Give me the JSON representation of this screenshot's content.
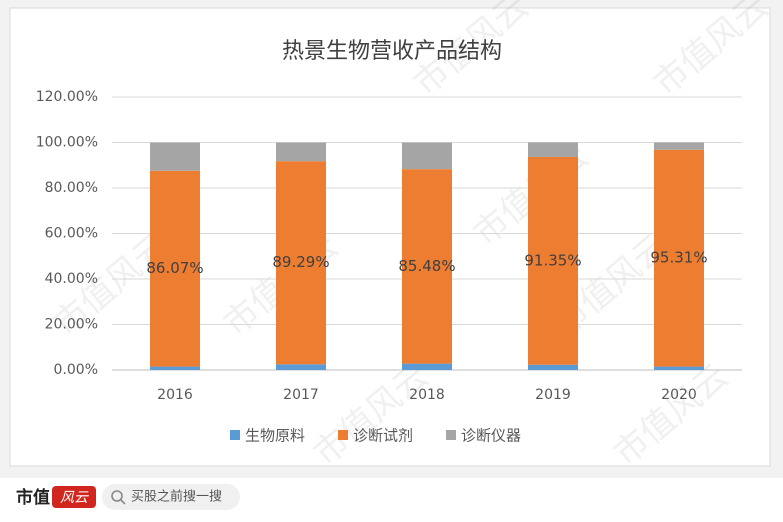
{
  "chart_data": {
    "type": "stacked_bar",
    "title": "热景生物营收产品结构",
    "categories": [
      "2016",
      "2017",
      "2018",
      "2019",
      "2020"
    ],
    "series": [
      {
        "name": "生物原料",
        "color": "#5b9bd5",
        "values": [
          1.5,
          2.5,
          2.8,
          2.3,
          1.5
        ]
      },
      {
        "name": "诊断试剂",
        "color": "#ed7d31",
        "values": [
          86.07,
          89.29,
          85.48,
          91.35,
          95.31
        ],
        "value_labels": [
          "86.07%",
          "89.29%",
          "85.48%",
          "91.35%",
          "95.31%"
        ]
      },
      {
        "name": "诊断仪器",
        "color": "#a5a5a5",
        "values": [
          12.4,
          8.2,
          11.7,
          6.4,
          3.2
        ]
      }
    ],
    "ylim": [
      0,
      120
    ],
    "yticks": [
      {
        "value": 0,
        "label": "0.00%"
      },
      {
        "value": 20,
        "label": "20.00%"
      },
      {
        "value": 40,
        "label": "40.00%"
      },
      {
        "value": 60,
        "label": "60.00%"
      },
      {
        "value": 80,
        "label": "80.00%"
      },
      {
        "value": 100,
        "label": "100.00%"
      },
      {
        "value": 120,
        "label": "120.00%"
      }
    ],
    "grid": true,
    "legend": "bottom"
  },
  "watermark": "市值风云",
  "footer": {
    "logo": "市值",
    "logo_mark": "风云",
    "search": "买股之前搜一搜"
  }
}
